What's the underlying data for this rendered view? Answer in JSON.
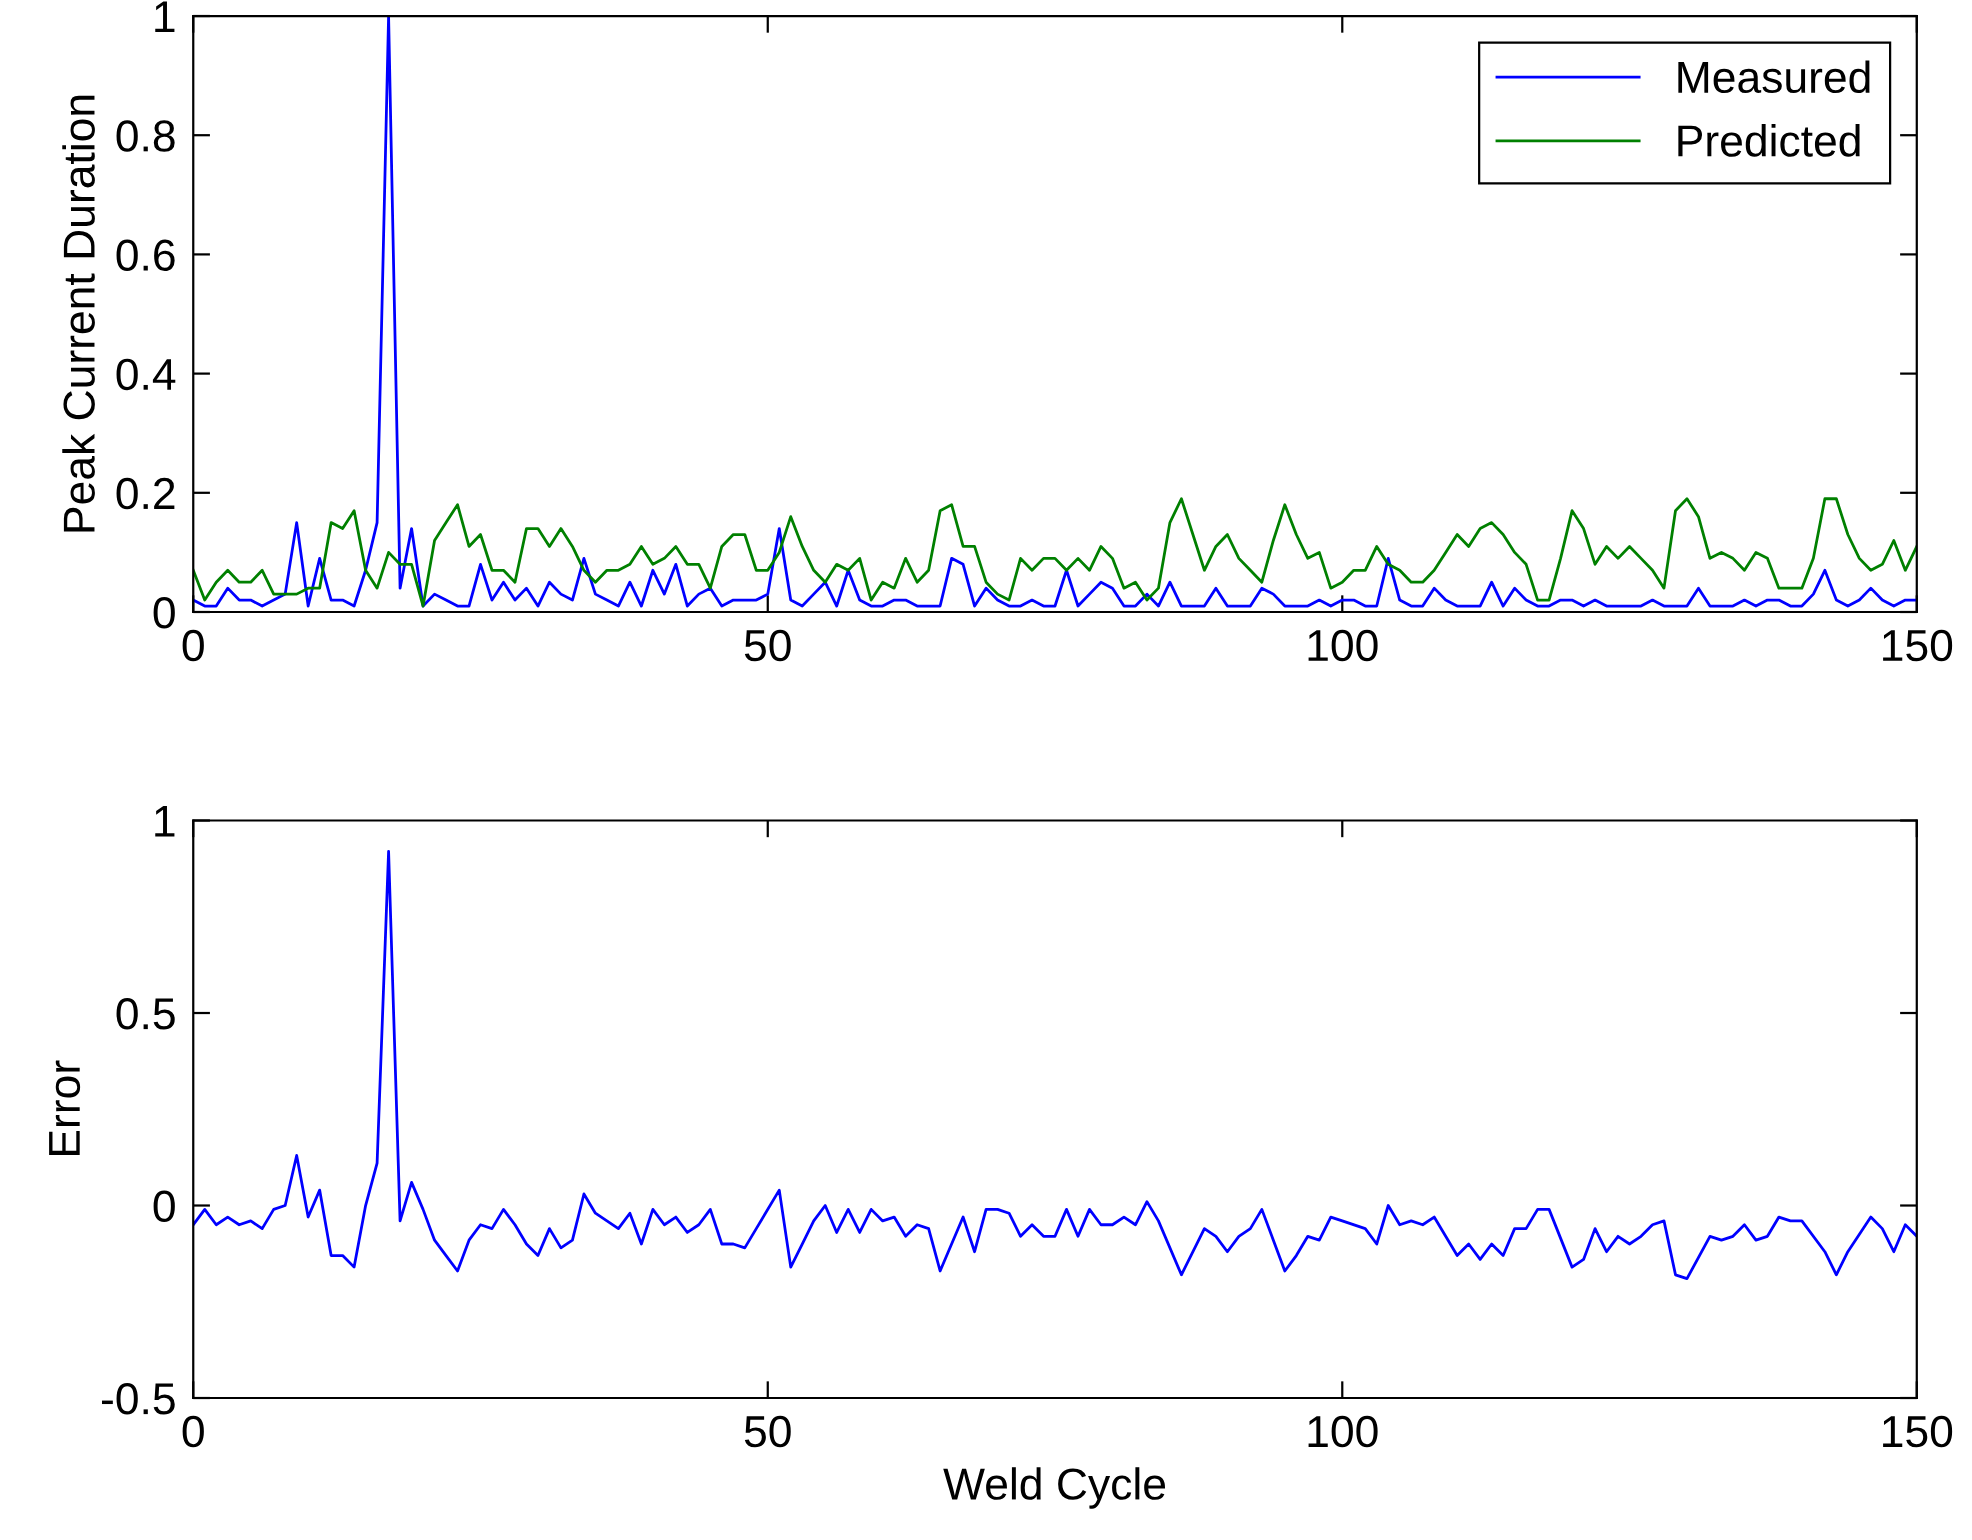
{
  "chart_data": [
    {
      "type": "line",
      "ylabel": "Peak Current Duration",
      "legend": "top right",
      "xlim": [
        0,
        150
      ],
      "xticks": [
        0,
        50,
        100,
        150
      ],
      "ylim": [
        0,
        1
      ],
      "yticks": [
        0,
        0.2,
        0.4,
        0.6,
        0.8,
        1
      ],
      "x": [
        0,
        1,
        2,
        3,
        4,
        5,
        6,
        7,
        8,
        9,
        10,
        11,
        12,
        13,
        14,
        15,
        16,
        17,
        18,
        19,
        20,
        21,
        22,
        23,
        24,
        25,
        26,
        27,
        28,
        29,
        30,
        31,
        32,
        33,
        34,
        35,
        36,
        37,
        38,
        39,
        40,
        41,
        42,
        43,
        44,
        45,
        46,
        47,
        48,
        49,
        50,
        51,
        52,
        53,
        54,
        55,
        56,
        57,
        58,
        59,
        60,
        61,
        62,
        63,
        64,
        65,
        66,
        67,
        68,
        69,
        70,
        71,
        72,
        73,
        74,
        75,
        76,
        77,
        78,
        79,
        80,
        81,
        82,
        83,
        84,
        85,
        86,
        87,
        88,
        89,
        90,
        91,
        92,
        93,
        94,
        95,
        96,
        97,
        98,
        99,
        100,
        101,
        102,
        103,
        104,
        105,
        106,
        107,
        108,
        109,
        110,
        111,
        112,
        113,
        114,
        115,
        116,
        117,
        118,
        119,
        120,
        121,
        122,
        123,
        124,
        125,
        126,
        127,
        128,
        129,
        130,
        131,
        132,
        133,
        134,
        135,
        136,
        137,
        138,
        139,
        140,
        141,
        142,
        143,
        144,
        145,
        146,
        147,
        148,
        149,
        150
      ],
      "series": [
        {
          "name": "Measured",
          "color": "#0000ff",
          "values": [
            0.02,
            0.01,
            0.01,
            0.04,
            0.02,
            0.02,
            0.01,
            0.02,
            0.03,
            0.15,
            0.01,
            0.09,
            0.02,
            0.02,
            0.01,
            0.07,
            0.15,
            1.0,
            0.04,
            0.14,
            0.01,
            0.03,
            0.02,
            0.01,
            0.01,
            0.08,
            0.02,
            0.05,
            0.02,
            0.04,
            0.01,
            0.05,
            0.03,
            0.02,
            0.09,
            0.03,
            0.02,
            0.01,
            0.05,
            0.01,
            0.07,
            0.03,
            0.08,
            0.01,
            0.03,
            0.04,
            0.01,
            0.02,
            0.02,
            0.02,
            0.03,
            0.14,
            0.02,
            0.01,
            0.03,
            0.05,
            0.01,
            0.07,
            0.02,
            0.01,
            0.01,
            0.02,
            0.02,
            0.01,
            0.01,
            0.01,
            0.09,
            0.08,
            0.01,
            0.04,
            0.02,
            0.01,
            0.01,
            0.02,
            0.01,
            0.01,
            0.07,
            0.01,
            0.03,
            0.05,
            0.04,
            0.01,
            0.01,
            0.03,
            0.01,
            0.05,
            0.01,
            0.01,
            0.01,
            0.04,
            0.01,
            0.01,
            0.01,
            0.04,
            0.03,
            0.01,
            0.01,
            0.01,
            0.02,
            0.01,
            0.02,
            0.02,
            0.01,
            0.01,
            0.09,
            0.02,
            0.01,
            0.01,
            0.04,
            0.02,
            0.01,
            0.01,
            0.01,
            0.05,
            0.01,
            0.04,
            0.02,
            0.01,
            0.01,
            0.02,
            0.02,
            0.01,
            0.02,
            0.01,
            0.01,
            0.01,
            0.01,
            0.02,
            0.01,
            0.01,
            0.01,
            0.04,
            0.01,
            0.01,
            0.01,
            0.02,
            0.01,
            0.02,
            0.02,
            0.01,
            0.01,
            0.03,
            0.07,
            0.02,
            0.01,
            0.02,
            0.04,
            0.02,
            0.01,
            0.02,
            0.02
          ]
        },
        {
          "name": "Predicted",
          "color": "#008000",
          "values": [
            0.07,
            0.02,
            0.05,
            0.07,
            0.05,
            0.05,
            0.07,
            0.03,
            0.03,
            0.03,
            0.04,
            0.04,
            0.15,
            0.14,
            0.17,
            0.07,
            0.04,
            0.1,
            0.08,
            0.08,
            0.01,
            0.12,
            0.15,
            0.18,
            0.11,
            0.13,
            0.07,
            0.07,
            0.05,
            0.14,
            0.14,
            0.11,
            0.14,
            0.11,
            0.07,
            0.05,
            0.07,
            0.07,
            0.08,
            0.11,
            0.08,
            0.09,
            0.11,
            0.08,
            0.08,
            0.04,
            0.11,
            0.13,
            0.13,
            0.07,
            0.07,
            0.1,
            0.16,
            0.11,
            0.07,
            0.05,
            0.08,
            0.07,
            0.09,
            0.02,
            0.05,
            0.04,
            0.09,
            0.05,
            0.07,
            0.17,
            0.18,
            0.11,
            0.11,
            0.05,
            0.03,
            0.02,
            0.09,
            0.07,
            0.09,
            0.09,
            0.07,
            0.09,
            0.07,
            0.11,
            0.09,
            0.04,
            0.05,
            0.02,
            0.04,
            0.15,
            0.19,
            0.13,
            0.07,
            0.11,
            0.13,
            0.09,
            0.07,
            0.05,
            0.12,
            0.18,
            0.13,
            0.09,
            0.1,
            0.04,
            0.05,
            0.07,
            0.07,
            0.11,
            0.08,
            0.07,
            0.05,
            0.05,
            0.07,
            0.1,
            0.13,
            0.11,
            0.14,
            0.15,
            0.13,
            0.1,
            0.08,
            0.02,
            0.02,
            0.09,
            0.17,
            0.14,
            0.08,
            0.11,
            0.09,
            0.11,
            0.09,
            0.07,
            0.04,
            0.17,
            0.19,
            0.16,
            0.09,
            0.1,
            0.09,
            0.07,
            0.1,
            0.09,
            0.04,
            0.04,
            0.04,
            0.09,
            0.19,
            0.19,
            0.13,
            0.09,
            0.07,
            0.08,
            0.12,
            0.07,
            0.11
          ]
        }
      ]
    },
    {
      "type": "line",
      "xlabel": "Weld Cycle",
      "ylabel": "Error",
      "xlim": [
        0,
        150
      ],
      "xticks": [
        0,
        50,
        100,
        150
      ],
      "ylim": [
        -0.5,
        1
      ],
      "yticks": [
        -0.5,
        0,
        0.5,
        1
      ],
      "series": [
        {
          "color": "#0000ff",
          "x": [
            0,
            1,
            2,
            3,
            4,
            5,
            6,
            7,
            8,
            9,
            10,
            11,
            12,
            13,
            14,
            15,
            16,
            17,
            18,
            19,
            20,
            21,
            22,
            23,
            24,
            25,
            26,
            27,
            28,
            29,
            30,
            31,
            32,
            33,
            34,
            35,
            36,
            37,
            38,
            39,
            40,
            41,
            42,
            43,
            44,
            45,
            46,
            47,
            48,
            49,
            51,
            52,
            53,
            54,
            55,
            56,
            57,
            58,
            59,
            60,
            61,
            62,
            63,
            64,
            65,
            67,
            68,
            69,
            70,
            71,
            72,
            73,
            74,
            75,
            76,
            77,
            78,
            79,
            80,
            81,
            82,
            83,
            84,
            86,
            88,
            89,
            90,
            91,
            92,
            93,
            95,
            96,
            97,
            98,
            99,
            100,
            102,
            103,
            104,
            105,
            106,
            107,
            108,
            109,
            110,
            111,
            112,
            113,
            114,
            115,
            116,
            117,
            118,
            120,
            121,
            122,
            123,
            124,
            125,
            126,
            127,
            128,
            129,
            130,
            132,
            133,
            134,
            135,
            136,
            137,
            138,
            139,
            140,
            142,
            143,
            144,
            146,
            147,
            148,
            149,
            150
          ],
          "values": [
            -0.05,
            -0.01,
            -0.05,
            -0.03,
            -0.05,
            -0.04,
            -0.06,
            -0.01,
            0,
            0.13,
            -0.03,
            0.04,
            -0.13,
            -0.13,
            -0.16,
            0,
            0.11,
            0.92,
            -0.04,
            0.06,
            -0.01,
            -0.09,
            -0.13,
            -0.17,
            -0.09,
            -0.05,
            -0.06,
            -0.01,
            -0.05,
            -0.1,
            -0.13,
            -0.06,
            -0.11,
            -0.09,
            0.03,
            -0.02,
            -0.04,
            -0.06,
            -0.02,
            -0.1,
            -0.01,
            -0.05,
            -0.03,
            -0.07,
            -0.05,
            -0.01,
            -0.1,
            -0.1,
            -0.11,
            -0.06,
            0.04,
            -0.16,
            -0.1,
            -0.04,
            0,
            -0.07,
            -0.01,
            -0.07,
            -0.01,
            -0.04,
            -0.03,
            -0.08,
            -0.05,
            -0.06,
            -0.17,
            -0.03,
            -0.12,
            -0.01,
            -0.01,
            -0.02,
            -0.08,
            -0.05,
            -0.08,
            -0.08,
            -0.01,
            -0.08,
            -0.01,
            -0.05,
            -0.05,
            -0.03,
            -0.05,
            0.01,
            -0.04,
            -0.18,
            -0.06,
            -0.08,
            -0.12,
            -0.08,
            -0.06,
            -0.01,
            -0.17,
            -0.13,
            -0.08,
            -0.09,
            -0.03,
            -0.04,
            -0.06,
            -0.1,
            0,
            -0.05,
            -0.04,
            -0.05,
            -0.03,
            -0.08,
            -0.13,
            -0.1,
            -0.14,
            -0.1,
            -0.13,
            -0.06,
            -0.06,
            -0.01,
            -0.01,
            -0.16,
            -0.14,
            -0.06,
            -0.12,
            -0.08,
            -0.1,
            -0.08,
            -0.05,
            -0.04,
            -0.18,
            -0.19,
            -0.08,
            -0.09,
            -0.08,
            -0.05,
            -0.09,
            -0.08,
            -0.03,
            -0.04,
            -0.04,
            -0.12,
            -0.18,
            -0.12,
            -0.03,
            -0.06,
            -0.12,
            -0.05,
            -0.08
          ]
        }
      ]
    }
  ]
}
